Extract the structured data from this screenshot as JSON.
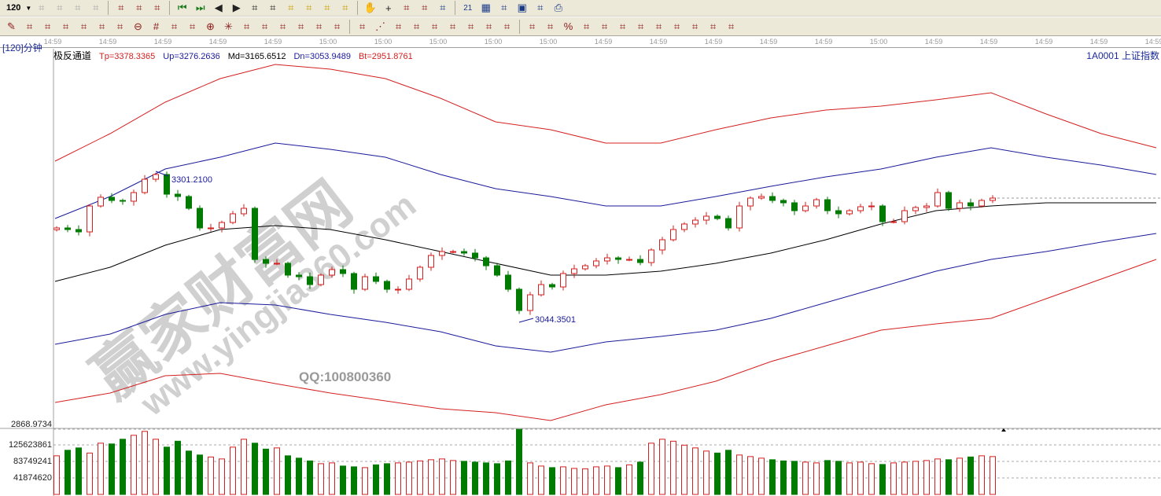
{
  "toolbar1": {
    "period_select": "120",
    "items": [
      "target-icon",
      "note-icon",
      "bar-chart-icon",
      "bar-chart-alt-icon",
      "candle-select-icon",
      "indicator-icon",
      "color-flag-icon",
      "first-icon",
      "last-icon",
      "left-icon",
      "right-icon",
      "zoom-left-icon",
      "zoom-right-icon",
      "expand-icon",
      "shrink-icon",
      "expand-all-icon",
      "shrink-all-icon",
      "hand-icon",
      "crosshair-icon",
      "draw-line-icon",
      "formula-icon",
      "recycle-icon",
      "calendar-icon",
      "calculator-icon",
      "report-icon",
      "save-icon",
      "network-icon",
      "print-icon"
    ],
    "calendar_day": "21"
  },
  "toolbar2": {
    "items": [
      "pen-icon",
      "parallel-icon",
      "gold-split-icon",
      "gold-split-alt-icon",
      "fib-icon",
      "cycle-icon",
      "wave-icon",
      "circle-icon",
      "grid-icon",
      "n2-icon",
      "angle-icon",
      "target-cross-icon",
      "star-icon",
      "box-icon",
      "gann-icon",
      "draw-tall-icon",
      "draw-wide-icon",
      "ruler-icon",
      "width-icon",
      "box-line-icon",
      "fan-icon",
      "gann-fan-icon",
      "speed-icon",
      "angle-line-icon",
      "wave-line-icon",
      "square-grid-icon",
      "box-grid-icon",
      "slope-icon",
      "stats-icon",
      "percent-line-icon",
      "percent-icon",
      "percent-alt-icon",
      "gold-line-icon",
      "arrow-line-icon",
      "line-a-icon",
      "line-b-icon",
      "line-c-icon",
      "line-d-icon",
      "line-e-icon",
      "line-f-icon"
    ],
    "percent_label": "%"
  },
  "time_axis": [
    "14:59",
    "14:59",
    "14:59",
    "14:59",
    "14:59",
    "15:00",
    "15:00",
    "15:00",
    "15:00",
    "15:00",
    "14:59",
    "14:59",
    "14:59",
    "14:59",
    "14:59",
    "15:00",
    "14:59",
    "14:59",
    "14:59",
    "14:59",
    "14:59"
  ],
  "header": {
    "period": "[120]分钟",
    "indicator": "极反通道",
    "tp": "Tp=3378.3365",
    "up": "Up=3276.2636",
    "md": "Md=3165.6512",
    "dn": "Dn=3053.9489",
    "bt": "Bt=2951.8761",
    "stock": "1A0001 上证指数"
  },
  "colors": {
    "tp": "#d42020",
    "up": "#1a1a9a",
    "md": "#000000",
    "dn": "#1a1a9a",
    "bt": "#d42020",
    "rise": "#d42020",
    "fall": "#007a00"
  },
  "annotations": {
    "high": "3301.2100",
    "low": "3044.3501"
  },
  "chart_data": {
    "type": "candlestick",
    "closes": [
      3204.9,
      3202.2,
      3198.2,
      3242.3,
      3257.1,
      3251.7,
      3250.4,
      3265.1,
      3287.8,
      3295.9,
      3262.4,
      3258.4,
      3238.3,
      3204.9,
      3204.9,
      3214.2,
      3229.0,
      3238.3,
      3151.3,
      3144.7,
      3144.7,
      3124.6,
      3121.9,
      3108.5,
      3124.6,
      3134.0,
      3127.3,
      3100.5,
      3121.9,
      3113.9,
      3100.5,
      3100.5,
      3117.9,
      3138.0,
      3158.1,
      3164.7,
      3164.7,
      3162.1,
      3154.0,
      3140.6,
      3124.6,
      3100.5,
      3064.4,
      3091.1,
      3108.5,
      3104.5,
      3127.3,
      3135.3,
      3140.6,
      3148.7,
      3154.0,
      3151.3,
      3151.3,
      3146.0,
      3167.4,
      3184.8,
      3202.2,
      3211.6,
      3218.2,
      3224.9,
      3220.9,
      3204.9,
      3242.3,
      3255.7,
      3258.4,
      3251.7,
      3247.7,
      3234.3,
      3242.3,
      3253.0,
      3234.3,
      3229.0,
      3234.3,
      3241.0,
      3242.3,
      3215.6,
      3215.6,
      3234.3,
      3239.7,
      3242.3,
      3265.1,
      3238.3,
      3247.7,
      3242.3,
      3251.7,
      3255.7
    ],
    "high": 3301.21,
    "low": 3044.3501,
    "channel": {
      "tp": [
        3318.6,
        3365.4,
        3418.9,
        3459.1,
        3483.2,
        3475.2,
        3459.1,
        3425.6,
        3385.5,
        3372.1,
        3349.4,
        3349.4,
        3372.1,
        3392.2,
        3405.6,
        3412.3,
        3423.0,
        3435.0,
        3398.9,
        3365.4,
        3341.3
      ],
      "up": [
        3220.9,
        3258.4,
        3305.2,
        3325.3,
        3349.4,
        3338.7,
        3325.3,
        3295.9,
        3271.8,
        3258.4,
        3242.3,
        3242.3,
        3258.4,
        3275.8,
        3291.8,
        3305.2,
        3325.3,
        3341.3,
        3325.3,
        3311.9,
        3295.9
      ],
      "md": [
        3113.9,
        3138.0,
        3175.4,
        3202.2,
        3208.9,
        3202.2,
        3184.8,
        3164.7,
        3144.7,
        3124.6,
        3124.6,
        3131.3,
        3144.7,
        3162.1,
        3184.8,
        3211.6,
        3234.3,
        3242.3,
        3247.7,
        3247.7,
        3247.7
      ],
      "dn": [
        3006.9,
        3024.2,
        3057.7,
        3077.7,
        3073.7,
        3057.7,
        3044.3,
        3028.3,
        3004.2,
        2993.5,
        3010.9,
        3020.2,
        3030.9,
        3051.0,
        3077.7,
        3104.5,
        3131.3,
        3151.3,
        3164.7,
        3180.8,
        3195.5
      ],
      "bt": [
        2907.8,
        2923.9,
        2953.3,
        2957.3,
        2939.9,
        2923.9,
        2910.5,
        2897.1,
        2890.4,
        2877.1,
        2903.8,
        2921.2,
        2943.9,
        2977.4,
        3004.2,
        3030.9,
        3041.6,
        3051.0,
        3084.4,
        3117.9,
        3151.3
      ]
    },
    "volume_axis": [
      "2868.9734",
      "125623861",
      "83749241",
      "41874620"
    ],
    "volume": [
      98000000.0,
      112000000.0,
      118000000.0,
      105000000.0,
      130000000.0,
      128000000.0,
      140000000.0,
      150000000.0,
      160000000.0,
      140000000.0,
      120000000.0,
      135000000.0,
      110000000.0,
      100000000.0,
      95000000.0,
      90000000.0,
      120000000.0,
      140000000.0,
      130000000.0,
      115000000.0,
      118000000.0,
      98000000.0,
      92000000.0,
      85000000.0,
      78000000.0,
      80000000.0,
      72000000.0,
      70000000.0,
      68000000.0,
      75000000.0,
      78000000.0,
      80000000.0,
      82000000.0,
      85000000.0,
      88000000.0,
      90000000.0,
      86000000.0,
      84000000.0,
      82000000.0,
      80000000.0,
      78000000.0,
      85000000.0,
      165000000.0,
      80000000.0,
      72000000.0,
      68000000.0,
      70000000.0,
      66000000.0,
      65000000.0,
      70000000.0,
      72000000.0,
      68000000.0,
      75000000.0,
      82000000.0,
      130000000.0,
      140000000.0,
      135000000.0,
      125000000.0,
      118000000.0,
      110000000.0,
      105000000.0,
      112000000.0,
      100000000.0,
      96000000.0,
      92000000.0,
      88000000.0,
      85000000.0,
      84000000.0,
      82000000.0,
      80000000.0,
      86000000.0,
      84000000.0,
      80000000.0,
      82000000.0,
      78000000.0,
      76000000.0,
      80000000.0,
      82000000.0,
      84000000.0,
      86000000.0,
      90000000.0,
      88000000.0,
      92000000.0,
      95000000.0,
      98000000.0,
      96000000.0
    ]
  },
  "watermark": {
    "logo": "赢家财富网",
    "url": "www.yingjia360.com",
    "qq": "QQ:100800360"
  }
}
